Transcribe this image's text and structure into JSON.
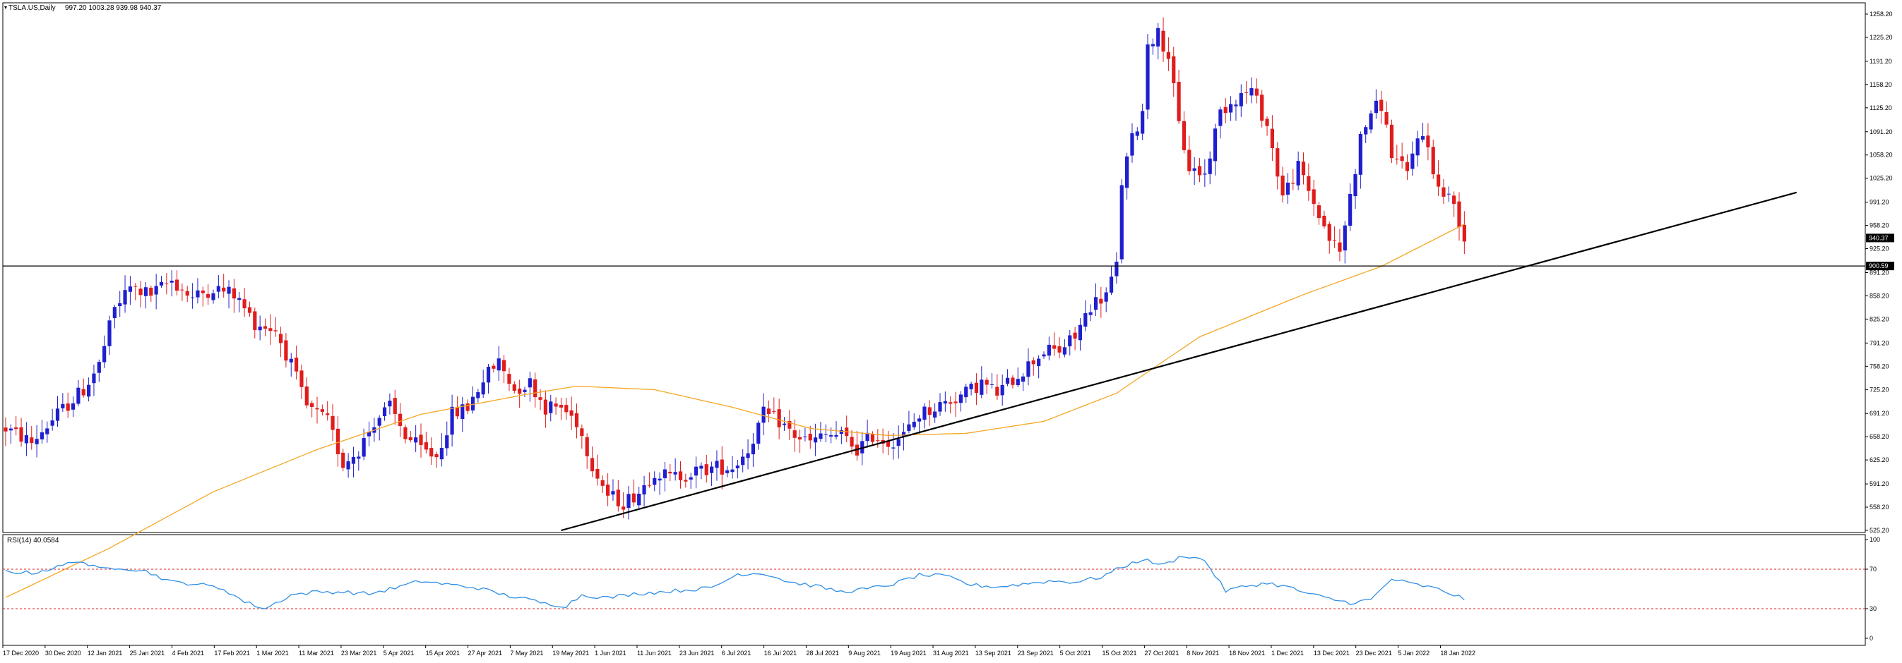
{
  "header": {
    "symbol_label": "TSLA.US,Daily",
    "ohlc_label": "997.20 1003.28 939.98 940.37"
  },
  "rsi": {
    "label": "RSI(14) 40.0584",
    "levels": [
      "100",
      "70",
      "30",
      "0"
    ],
    "overbought": 70,
    "oversold": 30,
    "level_color": "#e02020",
    "line_color": "#2f8fe6"
  },
  "price_axis": {
    "ticks": [
      "1258.20",
      "1225.20",
      "1191.20",
      "1158.20",
      "1125.20",
      "1091.20",
      "1058.20",
      "1025.20",
      "991.20",
      "958.20",
      "925.20",
      "891.20",
      "858.20",
      "825.20",
      "791.20",
      "758.20",
      "725.20",
      "691.20",
      "658.20",
      "625.20",
      "591.20",
      "558.20",
      "525.20"
    ],
    "current_price_tag": "940.37",
    "hline_tag": "900.59",
    "hline_value": 900.59
  },
  "date_axis": {
    "labels": [
      "17 Dec 2020",
      "30 Dec 2020",
      "12 Jan 2021",
      "25 Jan 2021",
      "4 Feb 2021",
      "17 Feb 2021",
      "1 Mar 2021",
      "11 Mar 2021",
      "23 Mar 2021",
      "5 Apr 2021",
      "15 Apr 2021",
      "27 Apr 2021",
      "7 May 2021",
      "19 May 2021",
      "1 Jun 2021",
      "11 Jun 2021",
      "23 Jun 2021",
      "6 Jul 2021",
      "16 Jul 2021",
      "28 Jul 2021",
      "9 Aug 2021",
      "19 Aug 2021",
      "31 Aug 2021",
      "13 Sep 2021",
      "23 Sep 2021",
      "5 Oct 2021",
      "15 Oct 2021",
      "27 Oct 2021",
      "8 Nov 2021",
      "18 Nov 2021",
      "1 Dec 2021",
      "13 Dec 2021",
      "23 Dec 2021",
      "5 Jan 2022",
      "18 Jan 2022"
    ]
  },
  "colors": {
    "bull": "#1f1fcf",
    "bear": "#e01c1c",
    "ma": "#f5a623",
    "trendline": "#000000",
    "hline": "#000000"
  },
  "chart_data": {
    "type": "candlestick",
    "symbol": "TSLA.US",
    "timeframe": "Daily",
    "ylim": [
      525.2,
      1270
    ],
    "anchors": [
      [
        0,
        670
      ],
      [
        5,
        650
      ],
      [
        10,
        690
      ],
      [
        15,
        725
      ],
      [
        18,
        760
      ],
      [
        21,
        840
      ],
      [
        24,
        870
      ],
      [
        28,
        860
      ],
      [
        32,
        880
      ],
      [
        36,
        855
      ],
      [
        40,
        870
      ],
      [
        44,
        860
      ],
      [
        48,
        820
      ],
      [
        52,
        810
      ],
      [
        55,
        760
      ],
      [
        58,
        700
      ],
      [
        62,
        680
      ],
      [
        65,
        620
      ],
      [
        68,
        640
      ],
      [
        71,
        680
      ],
      [
        74,
        700
      ],
      [
        77,
        660
      ],
      [
        80,
        640
      ],
      [
        83,
        630
      ],
      [
        86,
        690
      ],
      [
        89,
        700
      ],
      [
        92,
        740
      ],
      [
        95,
        765
      ],
      [
        98,
        725
      ],
      [
        101,
        735
      ],
      [
        104,
        700
      ],
      [
        107,
        700
      ],
      [
        110,
        680
      ],
      [
        113,
        620
      ],
      [
        116,
        575
      ],
      [
        119,
        565
      ],
      [
        122,
        580
      ],
      [
        125,
        610
      ],
      [
        128,
        600
      ],
      [
        131,
        605
      ],
      [
        134,
        610
      ],
      [
        137,
        615
      ],
      [
        140,
        615
      ],
      [
        143,
        640
      ],
      [
        146,
        690
      ],
      [
        149,
        680
      ],
      [
        152,
        660
      ],
      [
        155,
        650
      ],
      [
        158,
        660
      ],
      [
        161,
        660
      ],
      [
        164,
        640
      ],
      [
        167,
        660
      ],
      [
        170,
        650
      ],
      [
        173,
        660
      ],
      [
        176,
        690
      ],
      [
        179,
        700
      ],
      [
        182,
        710
      ],
      [
        185,
        720
      ],
      [
        188,
        735
      ],
      [
        191,
        720
      ],
      [
        194,
        740
      ],
      [
        197,
        760
      ],
      [
        200,
        780
      ],
      [
        203,
        780
      ],
      [
        206,
        800
      ],
      [
        209,
        845
      ],
      [
        212,
        860
      ],
      [
        214,
        900
      ],
      [
        215,
        1020
      ],
      [
        217,
        1080
      ],
      [
        219,
        1120
      ],
      [
        220,
        1220
      ],
      [
        222,
        1230
      ],
      [
        224,
        1200
      ],
      [
        226,
        1100
      ],
      [
        228,
        1040
      ],
      [
        231,
        1030
      ],
      [
        234,
        1120
      ],
      [
        237,
        1140
      ],
      [
        240,
        1150
      ],
      [
        243,
        1100
      ],
      [
        246,
        1000
      ],
      [
        249,
        1040
      ],
      [
        252,
        990
      ],
      [
        255,
        940
      ],
      [
        257,
        920
      ],
      [
        259,
        1000
      ],
      [
        261,
        1080
      ],
      [
        263,
        1120
      ],
      [
        265,
        1130
      ],
      [
        267,
        1060
      ],
      [
        270,
        1030
      ],
      [
        272,
        1090
      ],
      [
        274,
        1070
      ],
      [
        276,
        1010
      ],
      [
        279,
        990
      ],
      [
        281,
        940
      ]
    ],
    "ma_points": [
      [
        0,
        430
      ],
      [
        20,
        500
      ],
      [
        40,
        580
      ],
      [
        60,
        640
      ],
      [
        80,
        690
      ],
      [
        100,
        718
      ],
      [
        110,
        730
      ],
      [
        125,
        725
      ],
      [
        140,
        700
      ],
      [
        155,
        670
      ],
      [
        170,
        660
      ],
      [
        185,
        663
      ],
      [
        200,
        680
      ],
      [
        214,
        720
      ],
      [
        230,
        800
      ],
      [
        250,
        860
      ],
      [
        265,
        900
      ],
      [
        281,
        960
      ]
    ],
    "trendline": {
      "start": [
        107,
        525.2
      ],
      "end": [
        345,
        1005
      ]
    },
    "rsi_values": [
      [
        0,
        68
      ],
      [
        5,
        66
      ],
      [
        10,
        72
      ],
      [
        14,
        79
      ],
      [
        18,
        70
      ],
      [
        22,
        72
      ],
      [
        27,
        68
      ],
      [
        32,
        57
      ],
      [
        37,
        55
      ],
      [
        42,
        50
      ],
      [
        46,
        37
      ],
      [
        50,
        30
      ],
      [
        55,
        44
      ],
      [
        60,
        47
      ],
      [
        65,
        47
      ],
      [
        70,
        45
      ],
      [
        75,
        51
      ],
      [
        80,
        58
      ],
      [
        86,
        54
      ],
      [
        91,
        51
      ],
      [
        96,
        44
      ],
      [
        100,
        40
      ],
      [
        104,
        35
      ],
      [
        108,
        33
      ],
      [
        111,
        44
      ],
      [
        116,
        41
      ],
      [
        121,
        45
      ],
      [
        126,
        47
      ],
      [
        131,
        49
      ],
      [
        136,
        51
      ],
      [
        141,
        65
      ],
      [
        146,
        66
      ],
      [
        151,
        57
      ],
      [
        156,
        53
      ],
      [
        161,
        47
      ],
      [
        166,
        50
      ],
      [
        171,
        55
      ],
      [
        176,
        64
      ],
      [
        181,
        63
      ],
      [
        186,
        54
      ],
      [
        191,
        52
      ],
      [
        196,
        55
      ],
      [
        201,
        58
      ],
      [
        206,
        57
      ],
      [
        211,
        62
      ],
      [
        215,
        72
      ],
      [
        219,
        80
      ],
      [
        223,
        74
      ],
      [
        227,
        84
      ],
      [
        231,
        79
      ],
      [
        235,
        48
      ],
      [
        239,
        53
      ],
      [
        243,
        56
      ],
      [
        247,
        52
      ],
      [
        251,
        45
      ],
      [
        255,
        40
      ],
      [
        259,
        36
      ],
      [
        263,
        39
      ],
      [
        267,
        60
      ],
      [
        271,
        55
      ],
      [
        275,
        51
      ],
      [
        278,
        46
      ],
      [
        281,
        40
      ]
    ],
    "total_bars": 282,
    "seed": 12345
  }
}
